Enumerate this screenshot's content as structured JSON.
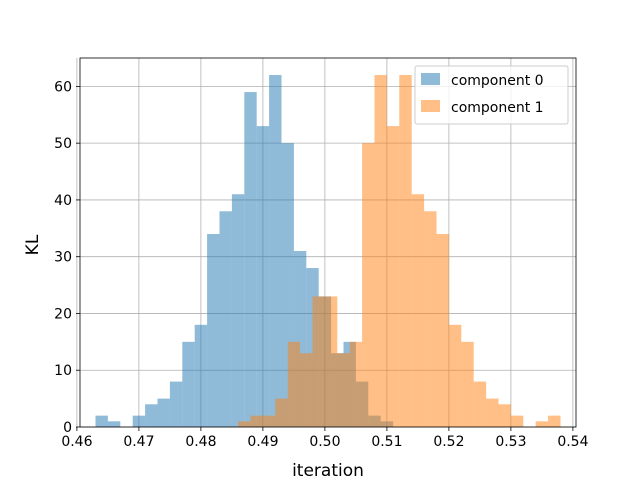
{
  "chart_data": {
    "type": "histogram",
    "xlabel": "iteration",
    "ylabel": "KL",
    "xlim": [
      0.4605,
      0.5405
    ],
    "ylim": [
      0,
      65
    ],
    "xticks": [
      0.46,
      0.47,
      0.48,
      0.49,
      0.5,
      0.51,
      0.52,
      0.53,
      0.54
    ],
    "xtick_labels": [
      "0.46",
      "0.47",
      "0.48",
      "0.49",
      "0.50",
      "0.51",
      "0.52",
      "0.53",
      "0.54"
    ],
    "yticks": [
      0,
      10,
      20,
      30,
      40,
      50,
      60
    ],
    "ytick_labels": [
      "0",
      "10",
      "20",
      "30",
      "40",
      "50",
      "60"
    ],
    "grid": true,
    "legend_position": "top-right",
    "series": [
      {
        "name": "component 0",
        "color": "#1f77b4",
        "alpha": 0.5,
        "bin_start": 0.463,
        "bin_width": 0.002,
        "counts": [
          2,
          1,
          0,
          2,
          4,
          5,
          8,
          15,
          18,
          34,
          38,
          41,
          59,
          53,
          62,
          50,
          31,
          28,
          23,
          13,
          15,
          8,
          2,
          1,
          0
        ]
      },
      {
        "name": "component 1",
        "color": "#ff7f0e",
        "alpha": 0.5,
        "bin_start": 0.486,
        "bin_width": 0.002,
        "counts": [
          1,
          2,
          2,
          5,
          15,
          13,
          23,
          23,
          13,
          15,
          50,
          62,
          53,
          62,
          41,
          38,
          34,
          18,
          15,
          8,
          5,
          4,
          2,
          0,
          1,
          2
        ]
      }
    ]
  }
}
